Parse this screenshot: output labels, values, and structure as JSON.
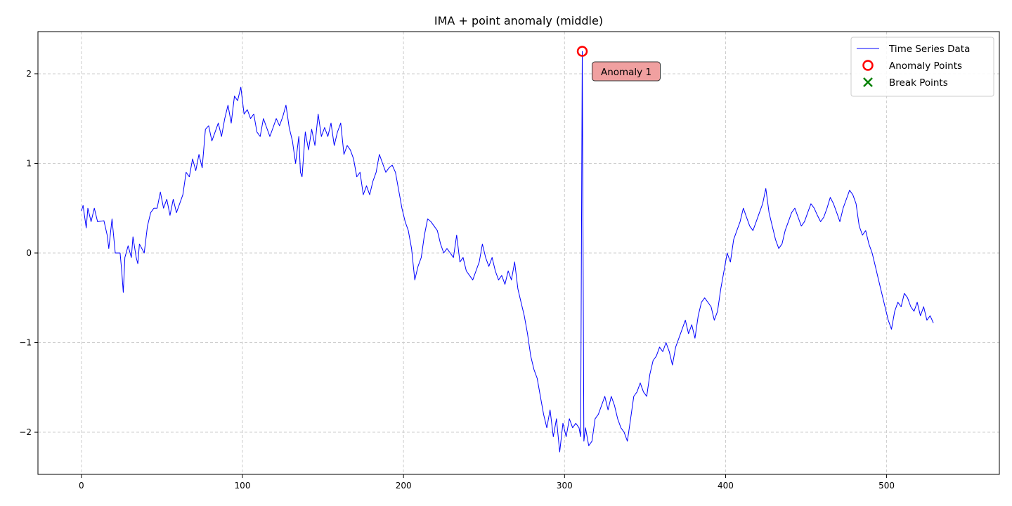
{
  "chart_data": {
    "type": "line",
    "title": "IMA + point anomaly (middle)",
    "xlabel": "",
    "ylabel": "",
    "xlim": [
      -27,
      570
    ],
    "ylim": [
      -2.47,
      2.47
    ],
    "x_ticks": [
      0,
      100,
      200,
      300,
      400,
      500
    ],
    "y_ticks": [
      -2,
      -1,
      0,
      1,
      2
    ],
    "grid": true,
    "legend_position": "top-right",
    "colors": {
      "line": "#0000ff",
      "anomaly": "#ff0000",
      "break": "#008000",
      "annotation_fill": "#f0a0a0"
    },
    "series": [
      {
        "name": "Time Series Data",
        "x_start": 0,
        "x_step": 1,
        "keypoints": [
          [
            0,
            0.47
          ],
          [
            1,
            0.53
          ],
          [
            3,
            0.28
          ],
          [
            4,
            0.5
          ],
          [
            6,
            0.35
          ],
          [
            8,
            0.5
          ],
          [
            10,
            0.35
          ],
          [
            14,
            0.36
          ],
          [
            16,
            0.2
          ],
          [
            17,
            0.05
          ],
          [
            19,
            0.38
          ],
          [
            21,
            0.0
          ],
          [
            24,
            0.0
          ],
          [
            25,
            -0.2
          ],
          [
            26,
            -0.44
          ],
          [
            27,
            -0.05
          ],
          [
            29,
            0.08
          ],
          [
            31,
            -0.05
          ],
          [
            32,
            0.18
          ],
          [
            34,
            -0.05
          ],
          [
            35,
            -0.12
          ],
          [
            36,
            0.1
          ],
          [
            39,
            0.0
          ],
          [
            41,
            0.3
          ],
          [
            43,
            0.45
          ],
          [
            45,
            0.5
          ],
          [
            47,
            0.5
          ],
          [
            49,
            0.68
          ],
          [
            51,
            0.5
          ],
          [
            53,
            0.6
          ],
          [
            55,
            0.42
          ],
          [
            57,
            0.6
          ],
          [
            59,
            0.45
          ],
          [
            61,
            0.55
          ],
          [
            63,
            0.65
          ],
          [
            65,
            0.9
          ],
          [
            67,
            0.85
          ],
          [
            69,
            1.05
          ],
          [
            71,
            0.92
          ],
          [
            73,
            1.1
          ],
          [
            75,
            0.95
          ],
          [
            77,
            1.38
          ],
          [
            79,
            1.42
          ],
          [
            81,
            1.25
          ],
          [
            83,
            1.35
          ],
          [
            85,
            1.45
          ],
          [
            87,
            1.3
          ],
          [
            89,
            1.5
          ],
          [
            91,
            1.65
          ],
          [
            93,
            1.45
          ],
          [
            95,
            1.75
          ],
          [
            97,
            1.7
          ],
          [
            99,
            1.85
          ],
          [
            101,
            1.55
          ],
          [
            103,
            1.6
          ],
          [
            105,
            1.5
          ],
          [
            107,
            1.55
          ],
          [
            109,
            1.35
          ],
          [
            111,
            1.3
          ],
          [
            113,
            1.5
          ],
          [
            115,
            1.4
          ],
          [
            117,
            1.3
          ],
          [
            119,
            1.4
          ],
          [
            121,
            1.5
          ],
          [
            123,
            1.42
          ],
          [
            125,
            1.52
          ],
          [
            127,
            1.65
          ],
          [
            129,
            1.4
          ],
          [
            131,
            1.25
          ],
          [
            133,
            1.0
          ],
          [
            135,
            1.3
          ],
          [
            136,
            0.9
          ],
          [
            137,
            0.85
          ],
          [
            139,
            1.35
          ],
          [
            141,
            1.15
          ],
          [
            143,
            1.38
          ],
          [
            145,
            1.2
          ],
          [
            147,
            1.55
          ],
          [
            149,
            1.3
          ],
          [
            151,
            1.4
          ],
          [
            153,
            1.3
          ],
          [
            155,
            1.45
          ],
          [
            157,
            1.2
          ],
          [
            159,
            1.35
          ],
          [
            161,
            1.45
          ],
          [
            163,
            1.1
          ],
          [
            165,
            1.2
          ],
          [
            167,
            1.15
          ],
          [
            169,
            1.05
          ],
          [
            171,
            0.85
          ],
          [
            173,
            0.9
          ],
          [
            175,
            0.65
          ],
          [
            177,
            0.75
          ],
          [
            179,
            0.65
          ],
          [
            181,
            0.8
          ],
          [
            183,
            0.9
          ],
          [
            185,
            1.1
          ],
          [
            187,
            1.0
          ],
          [
            189,
            0.9
          ],
          [
            191,
            0.95
          ],
          [
            193,
            0.98
          ],
          [
            195,
            0.9
          ],
          [
            197,
            0.7
          ],
          [
            199,
            0.5
          ],
          [
            201,
            0.35
          ],
          [
            203,
            0.25
          ],
          [
            205,
            0.05
          ],
          [
            207,
            -0.3
          ],
          [
            209,
            -0.15
          ],
          [
            211,
            -0.05
          ],
          [
            213,
            0.2
          ],
          [
            215,
            0.38
          ],
          [
            217,
            0.35
          ],
          [
            219,
            0.3
          ],
          [
            221,
            0.25
          ],
          [
            223,
            0.1
          ],
          [
            225,
            0.0
          ],
          [
            227,
            0.05
          ],
          [
            229,
            0.0
          ],
          [
            231,
            -0.05
          ],
          [
            233,
            0.2
          ],
          [
            235,
            -0.1
          ],
          [
            237,
            -0.05
          ],
          [
            239,
            -0.2
          ],
          [
            241,
            -0.25
          ],
          [
            243,
            -0.3
          ],
          [
            245,
            -0.2
          ],
          [
            247,
            -0.1
          ],
          [
            249,
            0.1
          ],
          [
            251,
            -0.05
          ],
          [
            253,
            -0.15
          ],
          [
            255,
            -0.05
          ],
          [
            257,
            -0.2
          ],
          [
            259,
            -0.3
          ],
          [
            261,
            -0.25
          ],
          [
            263,
            -0.35
          ],
          [
            265,
            -0.2
          ],
          [
            267,
            -0.3
          ],
          [
            269,
            -0.1
          ],
          [
            271,
            -0.4
          ],
          [
            273,
            -0.55
          ],
          [
            275,
            -0.7
          ],
          [
            277,
            -0.9
          ],
          [
            279,
            -1.15
          ],
          [
            281,
            -1.3
          ],
          [
            283,
            -1.4
          ],
          [
            285,
            -1.6
          ],
          [
            287,
            -1.8
          ],
          [
            289,
            -1.95
          ],
          [
            291,
            -1.75
          ],
          [
            293,
            -2.05
          ],
          [
            295,
            -1.85
          ],
          [
            297,
            -2.22
          ],
          [
            299,
            -1.9
          ],
          [
            301,
            -2.05
          ],
          [
            303,
            -1.85
          ],
          [
            305,
            -1.95
          ],
          [
            307,
            -1.9
          ],
          [
            309,
            -1.95
          ],
          [
            310,
            -2.05
          ],
          [
            311,
            2.25
          ],
          [
            312,
            -2.1
          ],
          [
            313,
            -1.95
          ],
          [
            315,
            -2.15
          ],
          [
            317,
            -2.1
          ],
          [
            319,
            -1.85
          ],
          [
            321,
            -1.8
          ],
          [
            323,
            -1.7
          ],
          [
            325,
            -1.6
          ],
          [
            327,
            -1.75
          ],
          [
            329,
            -1.6
          ],
          [
            331,
            -1.7
          ],
          [
            333,
            -1.85
          ],
          [
            335,
            -1.95
          ],
          [
            337,
            -2.0
          ],
          [
            339,
            -2.1
          ],
          [
            341,
            -1.85
          ],
          [
            343,
            -1.6
          ],
          [
            345,
            -1.55
          ],
          [
            347,
            -1.45
          ],
          [
            349,
            -1.55
          ],
          [
            351,
            -1.6
          ],
          [
            353,
            -1.35
          ],
          [
            355,
            -1.2
          ],
          [
            357,
            -1.15
          ],
          [
            359,
            -1.05
          ],
          [
            361,
            -1.1
          ],
          [
            363,
            -1.0
          ],
          [
            365,
            -1.1
          ],
          [
            367,
            -1.25
          ],
          [
            369,
            -1.05
          ],
          [
            371,
            -0.95
          ],
          [
            373,
            -0.85
          ],
          [
            375,
            -0.75
          ],
          [
            377,
            -0.9
          ],
          [
            379,
            -0.8
          ],
          [
            381,
            -0.95
          ],
          [
            383,
            -0.7
          ],
          [
            385,
            -0.55
          ],
          [
            387,
            -0.5
          ],
          [
            389,
            -0.55
          ],
          [
            391,
            -0.6
          ],
          [
            393,
            -0.75
          ],
          [
            395,
            -0.65
          ],
          [
            397,
            -0.4
          ],
          [
            399,
            -0.2
          ],
          [
            401,
            0.0
          ],
          [
            403,
            -0.1
          ],
          [
            405,
            0.15
          ],
          [
            407,
            0.25
          ],
          [
            409,
            0.35
          ],
          [
            411,
            0.5
          ],
          [
            413,
            0.4
          ],
          [
            415,
            0.3
          ],
          [
            417,
            0.25
          ],
          [
            419,
            0.35
          ],
          [
            421,
            0.45
          ],
          [
            423,
            0.55
          ],
          [
            425,
            0.72
          ],
          [
            427,
            0.45
          ],
          [
            429,
            0.3
          ],
          [
            431,
            0.15
          ],
          [
            433,
            0.05
          ],
          [
            435,
            0.1
          ],
          [
            437,
            0.25
          ],
          [
            439,
            0.35
          ],
          [
            441,
            0.45
          ],
          [
            443,
            0.5
          ],
          [
            445,
            0.4
          ],
          [
            447,
            0.3
          ],
          [
            449,
            0.35
          ],
          [
            451,
            0.45
          ],
          [
            453,
            0.55
          ],
          [
            455,
            0.5
          ],
          [
            457,
            0.42
          ],
          [
            459,
            0.35
          ],
          [
            461,
            0.4
          ],
          [
            463,
            0.5
          ],
          [
            465,
            0.62
          ],
          [
            467,
            0.55
          ],
          [
            469,
            0.45
          ],
          [
            471,
            0.35
          ],
          [
            473,
            0.5
          ],
          [
            475,
            0.6
          ],
          [
            477,
            0.7
          ],
          [
            479,
            0.65
          ],
          [
            481,
            0.55
          ],
          [
            483,
            0.3
          ],
          [
            485,
            0.2
          ],
          [
            487,
            0.25
          ],
          [
            489,
            0.1
          ],
          [
            491,
            0.0
          ],
          [
            493,
            -0.15
          ],
          [
            495,
            -0.3
          ],
          [
            497,
            -0.45
          ],
          [
            499,
            -0.6
          ],
          [
            501,
            -0.75
          ],
          [
            503,
            -0.85
          ],
          [
            505,
            -0.65
          ],
          [
            507,
            -0.55
          ],
          [
            509,
            -0.6
          ],
          [
            511,
            -0.45
          ],
          [
            513,
            -0.5
          ],
          [
            515,
            -0.6
          ],
          [
            517,
            -0.65
          ],
          [
            519,
            -0.55
          ],
          [
            521,
            -0.7
          ],
          [
            523,
            -0.6
          ],
          [
            525,
            -0.75
          ],
          [
            527,
            -0.7
          ],
          [
            529,
            -0.78
          ]
        ]
      }
    ],
    "anomaly_points": [
      {
        "x": 311,
        "y": 2.25,
        "label": "Anomaly 1"
      }
    ],
    "break_points": [],
    "legend": [
      {
        "label": "Time Series Data",
        "marker": "line"
      },
      {
        "label": "Anomaly Points",
        "marker": "circle"
      },
      {
        "label": "Break Points",
        "marker": "x"
      }
    ]
  }
}
